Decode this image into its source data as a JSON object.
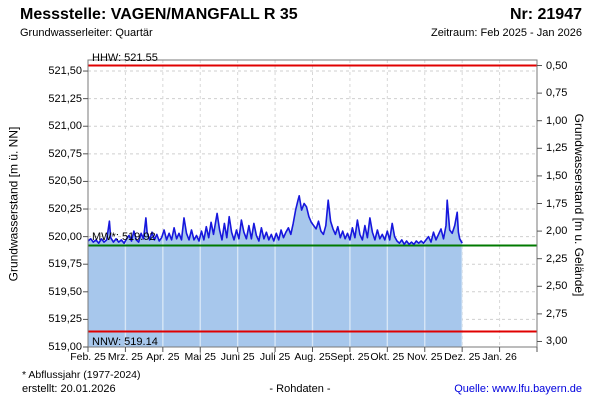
{
  "header": {
    "title": "Messstelle: VAGEN/MANGFALL R 35",
    "number": "Nr: 21947",
    "aquifer": "Grundwasserleiter: Quartär",
    "period": "Zeitraum: Feb 2025 - Jan 2026"
  },
  "footer": {
    "footnote": "* Abflussjahr (1977-2024)",
    "created": "erstellt:  20.01.2026",
    "center": "- Rohdaten -",
    "source_prefix": "Quelle: ",
    "source_link": "www.lfu.bayern.de"
  },
  "chart_data": {
    "type": "area",
    "title": "",
    "ylabel_left": "Grundwasserstand [m ü. NN]",
    "ylabel_right": "Grundwasserstand [m u. Gelände]",
    "ylim_left": [
      519.0,
      521.6
    ],
    "grid": true,
    "ground_level_m": 522.05,
    "x_months": [
      "Feb. 25",
      "Mrz. 25",
      "Apr. 25",
      "Mai 25",
      "Juni 25",
      "Juli 25",
      "Aug. 25",
      "Sept. 25",
      "Okt. 25",
      "Nov. 25",
      "Dez. 25",
      "Jan. 26"
    ],
    "month_lengths_days": [
      28,
      31,
      30,
      31,
      30,
      31,
      31,
      30,
      31,
      30,
      31,
      31
    ],
    "yticks_left": [
      {
        "v": 521.5,
        "label": "521,50"
      },
      {
        "v": 521.25,
        "label": "521,25"
      },
      {
        "v": 521.0,
        "label": "521,00"
      },
      {
        "v": 520.75,
        "label": "520,75"
      },
      {
        "v": 520.5,
        "label": "520,50"
      },
      {
        "v": 520.25,
        "label": "520,25"
      },
      {
        "v": 520.0,
        "label": "520,00"
      },
      {
        "v": 519.75,
        "label": "519,75"
      },
      {
        "v": 519.5,
        "label": "519,50"
      },
      {
        "v": 519.25,
        "label": "519,25"
      },
      {
        "v": 519.0,
        "label": "519,00"
      }
    ],
    "yticks_right": [
      {
        "v": 0.5,
        "label": "0,50"
      },
      {
        "v": 0.75,
        "label": "0,75"
      },
      {
        "v": 1.0,
        "label": "1,00"
      },
      {
        "v": 1.25,
        "label": "1,25"
      },
      {
        "v": 1.5,
        "label": "1,50"
      },
      {
        "v": 1.75,
        "label": "1,75"
      },
      {
        "v": 2.0,
        "label": "2,00"
      },
      {
        "v": 2.25,
        "label": "2,25"
      },
      {
        "v": 2.5,
        "label": "2,50"
      },
      {
        "v": 2.75,
        "label": "2,75"
      },
      {
        "v": 3.0,
        "label": "3,00"
      }
    ],
    "reference_lines": [
      {
        "name": "HHW",
        "label": "HHW: 521.55",
        "value": 521.55,
        "color": "#e00000",
        "label_side": "above"
      },
      {
        "name": "MW",
        "label": "MW*: 519.92",
        "value": 519.92,
        "color": "#007a00",
        "label_side": "above"
      },
      {
        "name": "NNW",
        "label": "NNW: 519.14",
        "value": 519.14,
        "color": "#e00000",
        "label_side": "below"
      }
    ],
    "series": [
      {
        "name": "Grundwasserstand Rohdaten",
        "line_color": "#1717dd",
        "fill_color": "#a7c7ec",
        "points_day_value": [
          [
            0,
            519.96
          ],
          [
            2,
            519.98
          ],
          [
            4,
            519.95
          ],
          [
            6,
            519.97
          ],
          [
            8,
            519.94
          ],
          [
            10,
            519.98
          ],
          [
            12,
            519.95
          ],
          [
            14,
            519.97
          ],
          [
            16,
            520.14
          ],
          [
            17,
            519.99
          ],
          [
            19,
            519.95
          ],
          [
            21,
            519.98
          ],
          [
            23,
            519.95
          ],
          [
            25,
            519.97
          ],
          [
            27,
            519.94
          ],
          [
            29,
            519.98
          ],
          [
            31,
            520.01
          ],
          [
            33,
            519.96
          ],
          [
            35,
            520.05
          ],
          [
            37,
            519.97
          ],
          [
            39,
            519.95
          ],
          [
            41,
            520.03
          ],
          [
            43,
            519.98
          ],
          [
            45,
            520.17
          ],
          [
            46,
            520.04
          ],
          [
            48,
            519.97
          ],
          [
            50,
            520.04
          ],
          [
            52,
            519.97
          ],
          [
            54,
            520.02
          ],
          [
            56,
            519.96
          ],
          [
            58,
            519.99
          ],
          [
            60,
            520.06
          ],
          [
            62,
            519.97
          ],
          [
            64,
            520.03
          ],
          [
            66,
            519.97
          ],
          [
            68,
            520.08
          ],
          [
            70,
            519.98
          ],
          [
            72,
            520.03
          ],
          [
            74,
            519.97
          ],
          [
            76,
            520.17
          ],
          [
            78,
            520.03
          ],
          [
            80,
            519.97
          ],
          [
            82,
            520.06
          ],
          [
            84,
            519.97
          ],
          [
            86,
            520.01
          ],
          [
            88,
            519.96
          ],
          [
            90,
            520.05
          ],
          [
            92,
            519.97
          ],
          [
            94,
            520.09
          ],
          [
            96,
            519.99
          ],
          [
            98,
            520.13
          ],
          [
            100,
            520.02
          ],
          [
            103,
            520.21
          ],
          [
            105,
            520.06
          ],
          [
            107,
            519.97
          ],
          [
            109,
            520.12
          ],
          [
            111,
            519.99
          ],
          [
            113,
            520.18
          ],
          [
            115,
            520.04
          ],
          [
            117,
            519.97
          ],
          [
            119,
            520.06
          ],
          [
            121,
            519.98
          ],
          [
            123,
            520.15
          ],
          [
            125,
            520.04
          ],
          [
            127,
            519.98
          ],
          [
            129,
            520.1
          ],
          [
            131,
            519.98
          ],
          [
            133,
            520.12
          ],
          [
            135,
            520.01
          ],
          [
            137,
            519.96
          ],
          [
            139,
            520.08
          ],
          [
            141,
            519.98
          ],
          [
            143,
            520.04
          ],
          [
            145,
            519.97
          ],
          [
            147,
            520.02
          ],
          [
            149,
            519.96
          ],
          [
            151,
            520.03
          ],
          [
            153,
            519.97
          ],
          [
            155,
            520.06
          ],
          [
            157,
            519.99
          ],
          [
            159,
            520.04
          ],
          [
            161,
            520.08
          ],
          [
            163,
            520.02
          ],
          [
            165,
            520.12
          ],
          [
            167,
            520.24
          ],
          [
            169,
            520.33
          ],
          [
            170,
            520.37
          ],
          [
            172,
            520.24
          ],
          [
            174,
            520.3
          ],
          [
            176,
            520.27
          ],
          [
            178,
            520.18
          ],
          [
            180,
            520.13
          ],
          [
            182,
            520.1
          ],
          [
            184,
            520.07
          ],
          [
            186,
            520.14
          ],
          [
            188,
            520.05
          ],
          [
            190,
            520.02
          ],
          [
            192,
            520.1
          ],
          [
            194,
            520.33
          ],
          [
            196,
            520.14
          ],
          [
            198,
            520.07
          ],
          [
            200,
            520.02
          ],
          [
            202,
            520.09
          ],
          [
            204,
            519.99
          ],
          [
            206,
            520.05
          ],
          [
            208,
            519.98
          ],
          [
            210,
            520.03
          ],
          [
            212,
            519.97
          ],
          [
            214,
            520.08
          ],
          [
            216,
            519.99
          ],
          [
            218,
            520.15
          ],
          [
            220,
            520.02
          ],
          [
            222,
            519.97
          ],
          [
            224,
            520.1
          ],
          [
            226,
            519.99
          ],
          [
            228,
            520.17
          ],
          [
            230,
            520.04
          ],
          [
            232,
            519.97
          ],
          [
            234,
            520.06
          ],
          [
            236,
            519.98
          ],
          [
            238,
            520.02
          ],
          [
            240,
            519.97
          ],
          [
            242,
            520.05
          ],
          [
            244,
            519.97
          ],
          [
            246,
            520.12
          ],
          [
            248,
            520.0
          ],
          [
            250,
            519.96
          ],
          [
            252,
            519.94
          ],
          [
            254,
            519.97
          ],
          [
            256,
            519.93
          ],
          [
            258,
            519.96
          ],
          [
            260,
            519.93
          ],
          [
            262,
            519.95
          ],
          [
            264,
            519.93
          ],
          [
            266,
            519.96
          ],
          [
            268,
            519.94
          ],
          [
            270,
            519.96
          ],
          [
            272,
            519.94
          ],
          [
            274,
            519.97
          ],
          [
            276,
            520.0
          ],
          [
            278,
            519.95
          ],
          [
            280,
            520.04
          ],
          [
            282,
            519.97
          ],
          [
            284,
            520.02
          ],
          [
            286,
            520.07
          ],
          [
            288,
            519.98
          ],
          [
            290,
            520.1
          ],
          [
            291,
            520.33
          ],
          [
            293,
            520.06
          ],
          [
            295,
            520.03
          ],
          [
            297,
            520.1
          ],
          [
            299,
            520.22
          ],
          [
            300,
            520.04
          ],
          [
            301,
            519.98
          ],
          [
            303,
            519.94
          ]
        ]
      }
    ]
  }
}
